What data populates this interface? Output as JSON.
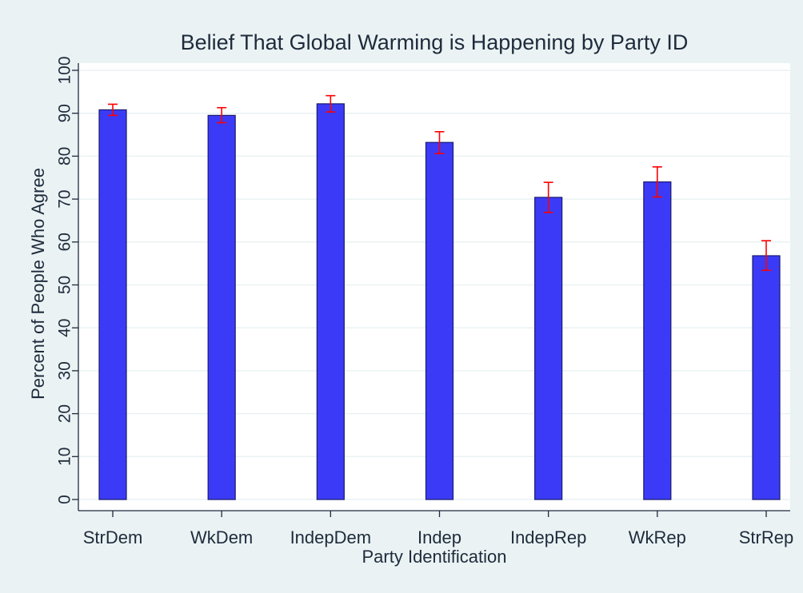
{
  "chart_data": {
    "type": "bar",
    "title": "Belief That Global Warming is Happening by Party ID",
    "xlabel": "Party Identification",
    "ylabel": "Percent of People Who Agree",
    "categories": [
      "StrDem",
      "WkDem",
      "IndepDem",
      "Indep",
      "IndepRep",
      "WkRep",
      "StrRep"
    ],
    "values": [
      90.8,
      89.5,
      92.2,
      83.2,
      70.4,
      74.0,
      56.8
    ],
    "error_low": [
      89.5,
      87.8,
      90.3,
      80.6,
      66.9,
      70.5,
      53.4
    ],
    "error_high": [
      92.1,
      91.3,
      94.1,
      85.7,
      73.9,
      77.5,
      60.3
    ],
    "ylim": [
      0,
      100
    ],
    "yticks": [
      0,
      10,
      20,
      30,
      40,
      50,
      60,
      70,
      80,
      90,
      100
    ],
    "grid": true,
    "legend": "none",
    "colors": {
      "background": "#eaf2f3",
      "plot_background": "#ffffff",
      "bar_fill": "#3b3bf7",
      "bar_stroke": "#1a1a6e",
      "error_bar": "#ff0000",
      "grid": "#eaf2f3",
      "text": "#1e2b3c"
    }
  }
}
